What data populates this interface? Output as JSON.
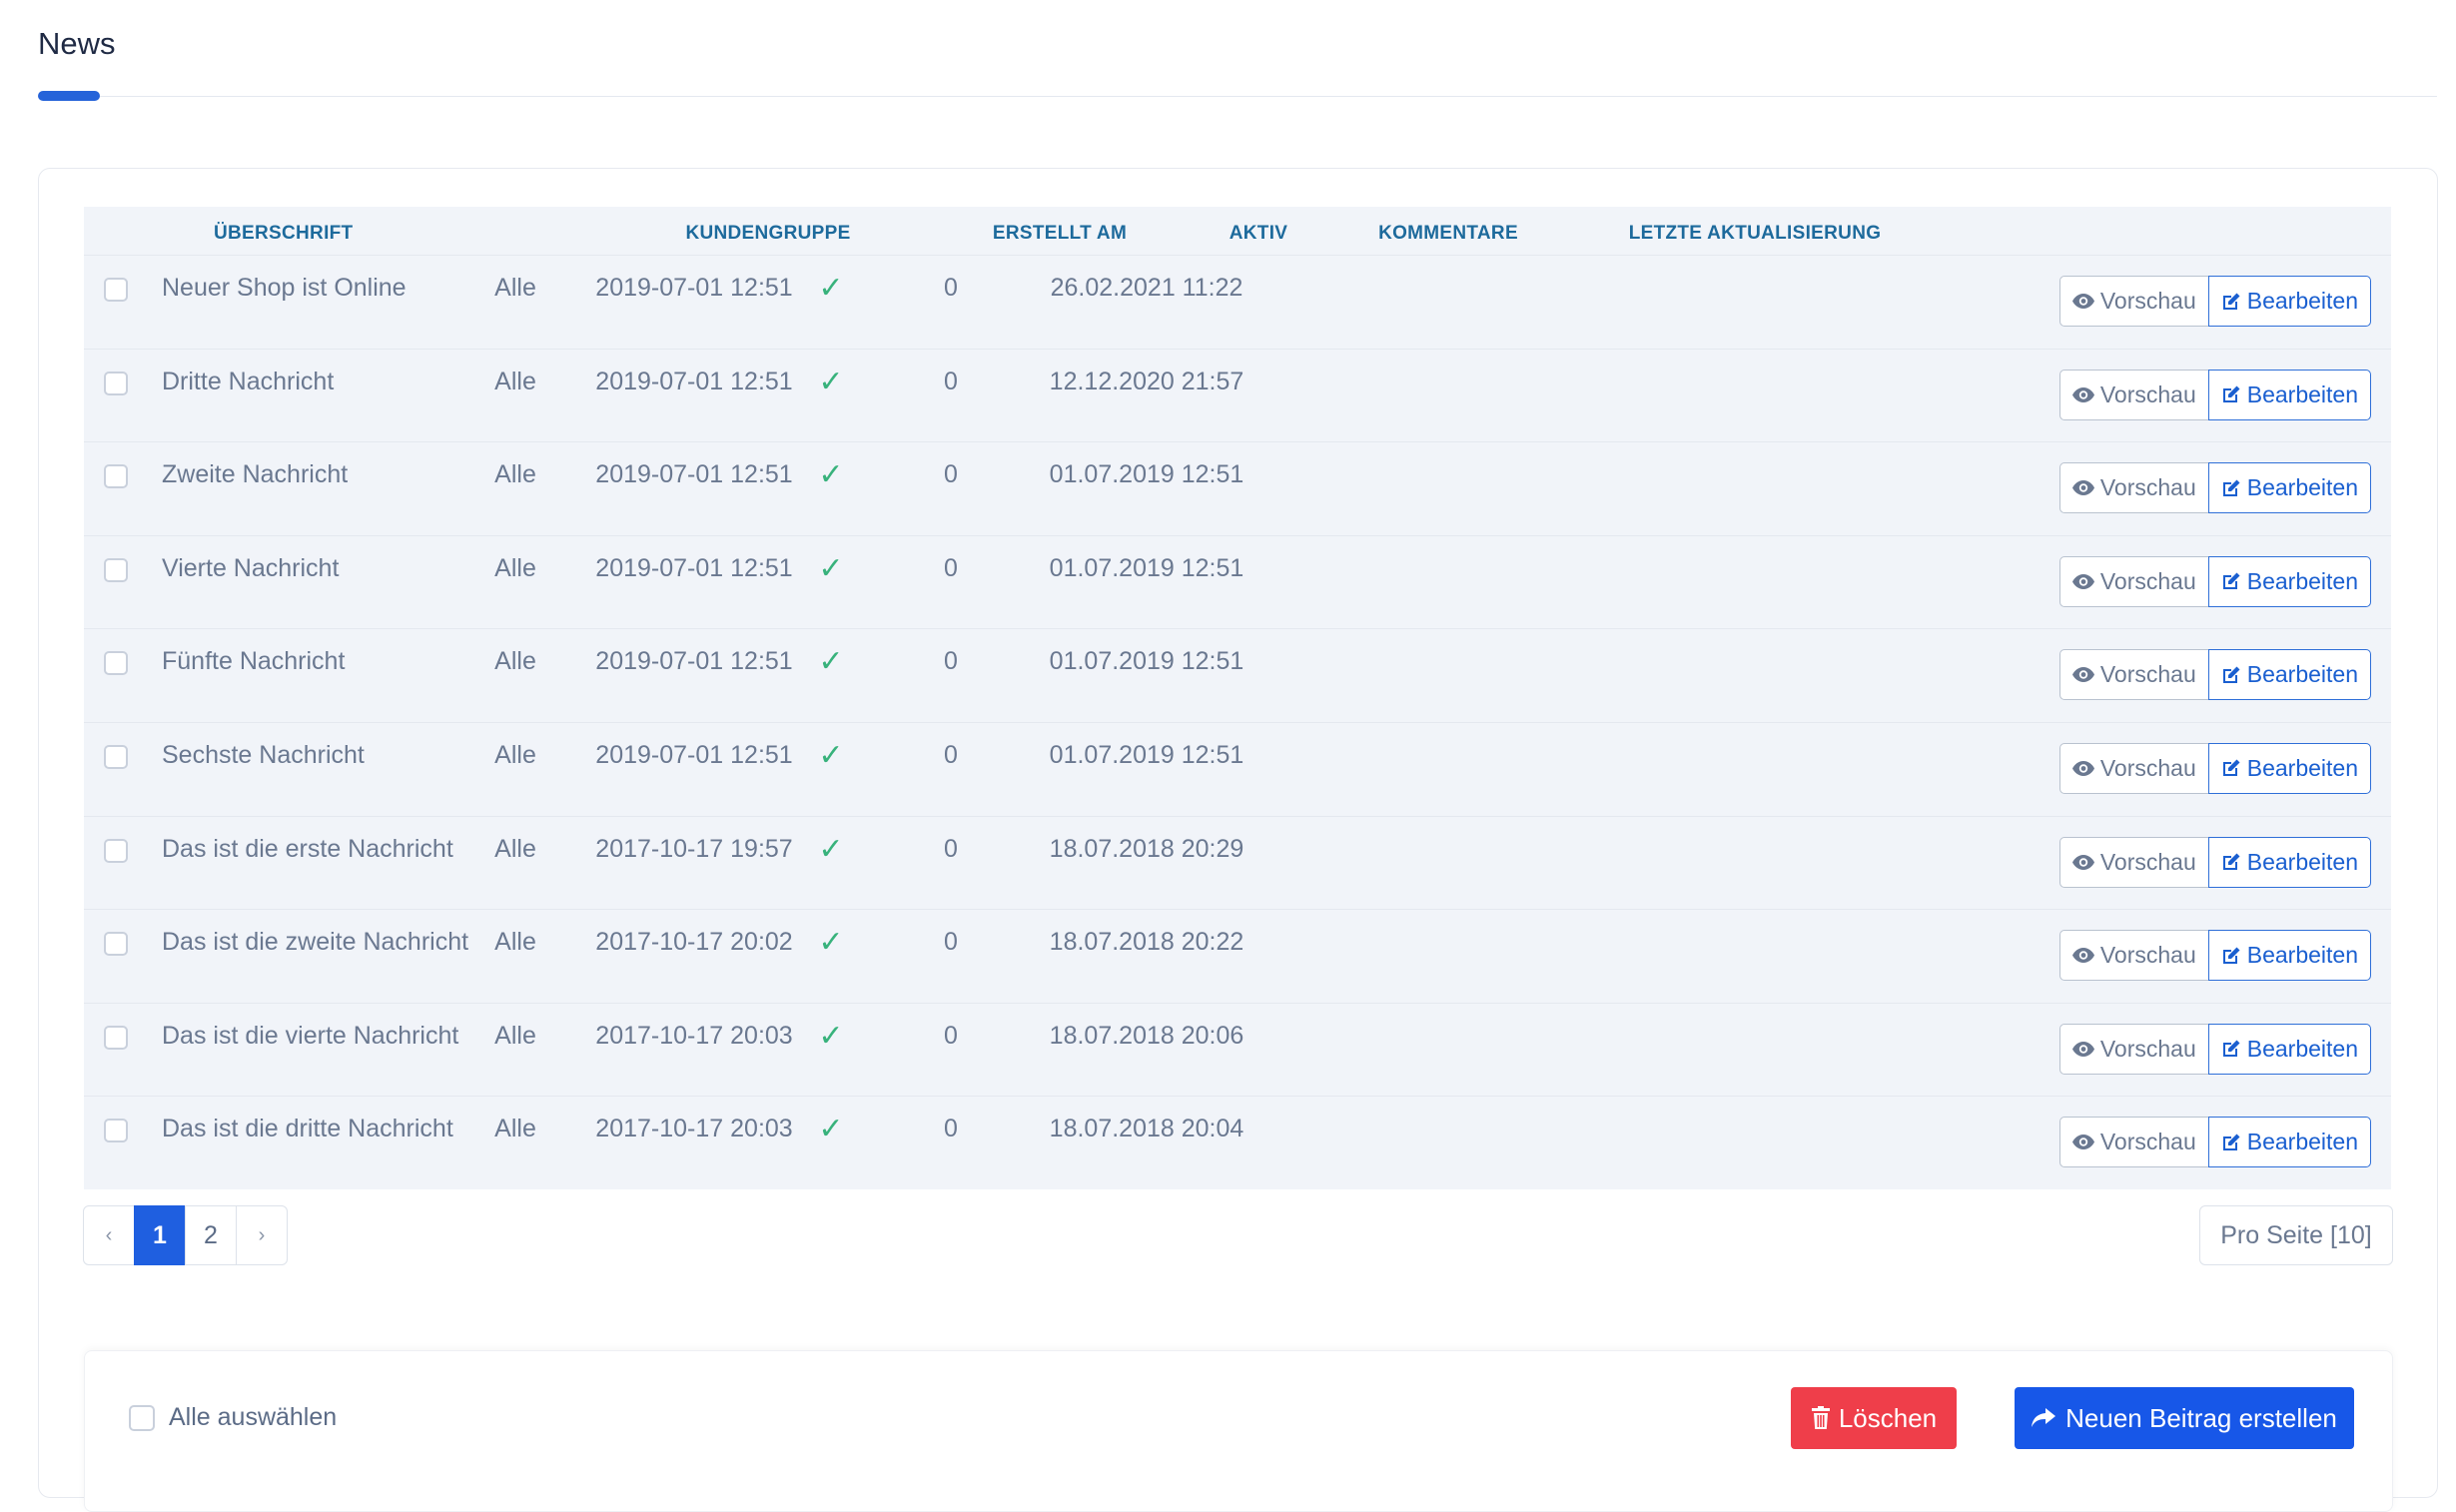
{
  "page": {
    "title": "News"
  },
  "table": {
    "headers": {
      "title": "ÜBERSCHRIFT",
      "group": "KUNDENGRUPPE",
      "created": "ERSTELLT AM",
      "active": "AKTIV",
      "comments": "KOMMENTARE",
      "updated": "LETZTE AKTUALISIERUNG"
    },
    "rows": [
      {
        "title": "Neuer Shop ist Online",
        "group": "Alle",
        "created": "2019-07-01 12:51",
        "active": "✓",
        "comments": "0",
        "updated": "26.02.2021 11:22"
      },
      {
        "title": "Dritte Nachricht",
        "group": "Alle",
        "created": "2019-07-01 12:51",
        "active": "✓",
        "comments": "0",
        "updated": "12.12.2020 21:57"
      },
      {
        "title": "Zweite Nachricht",
        "group": "Alle",
        "created": "2019-07-01 12:51",
        "active": "✓",
        "comments": "0",
        "updated": "01.07.2019 12:51"
      },
      {
        "title": "Vierte Nachricht",
        "group": "Alle",
        "created": "2019-07-01 12:51",
        "active": "✓",
        "comments": "0",
        "updated": "01.07.2019 12:51"
      },
      {
        "title": "Fünfte Nachricht",
        "group": "Alle",
        "created": "2019-07-01 12:51",
        "active": "✓",
        "comments": "0",
        "updated": "01.07.2019 12:51"
      },
      {
        "title": "Sechste Nachricht",
        "group": "Alle",
        "created": "2019-07-01 12:51",
        "active": "✓",
        "comments": "0",
        "updated": "01.07.2019 12:51"
      },
      {
        "title": "Das ist die erste Nachricht",
        "group": "Alle",
        "created": "2017-10-17 19:57",
        "active": "✓",
        "comments": "0",
        "updated": "18.07.2018 20:29"
      },
      {
        "title": "Das ist die zweite Nachricht",
        "group": "Alle",
        "created": "2017-10-17 20:02",
        "active": "✓",
        "comments": "0",
        "updated": "18.07.2018 20:22"
      },
      {
        "title": "Das ist die vierte Nachricht",
        "group": "Alle",
        "created": "2017-10-17 20:03",
        "active": "✓",
        "comments": "0",
        "updated": "18.07.2018 20:06"
      },
      {
        "title": "Das ist die dritte Nachricht",
        "group": "Alle",
        "created": "2017-10-17 20:03",
        "active": "✓",
        "comments": "0",
        "updated": "18.07.2018 20:04"
      }
    ],
    "actions": {
      "preview_label": "Vorschau",
      "edit_label": "Bearbeiten"
    }
  },
  "pagination": {
    "prev": "‹",
    "pages": [
      "1",
      "2"
    ],
    "current": "1",
    "next": "›",
    "per_page_label": "Pro Seite [10]"
  },
  "footer": {
    "select_all_label": "Alle auswählen",
    "delete_label": "Löschen",
    "create_label": "Neuen Beitrag erstellen"
  },
  "colors": {
    "accent": "#2563d9",
    "header_text": "#1d6a9c",
    "check": "#38b27c",
    "delete": "#ef3e4a",
    "primary": "#1757e8"
  },
  "icons": {
    "preview": "eye-icon",
    "edit": "edit-icon",
    "delete": "trash-icon",
    "create": "share-arrow-icon"
  }
}
